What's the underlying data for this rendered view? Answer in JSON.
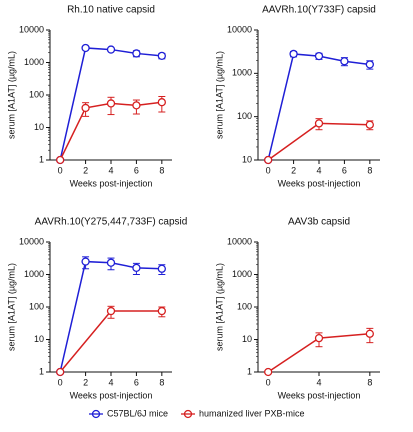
{
  "chart_data": [
    {
      "type": "line",
      "title": "Rh.10 native capsid",
      "x_label": "Weeks post-injection",
      "y_label": "serum [A1AT] (µg/mL)",
      "xlim": [
        -0.8,
        8.8
      ],
      "xticks": [
        0,
        2,
        4,
        6,
        8
      ],
      "ylim": [
        1,
        10000
      ],
      "yticks": [
        1,
        10,
        100,
        1000,
        10000
      ],
      "log_y": true,
      "series": [
        {
          "color": "#1f1fd6",
          "x": [
            0,
            2,
            4,
            6,
            8
          ],
          "values": [
            1,
            2800,
            2500,
            1900,
            1600
          ],
          "errors": [
            0,
            300,
            300,
            400,
            300
          ]
        },
        {
          "color": "#d62020",
          "x": [
            0,
            2,
            4,
            6,
            8
          ],
          "values": [
            1,
            40,
            55,
            48,
            60
          ],
          "errors": [
            0,
            18,
            30,
            22,
            30
          ]
        }
      ]
    },
    {
      "type": "line",
      "title": "AAVRh.10(Y733F) capsid",
      "x_label": "Weeks post-injection",
      "y_label": "serum [A1AT] (µg/mL)",
      "xlim": [
        -0.8,
        8.8
      ],
      "xticks": [
        0,
        2,
        4,
        6,
        8
      ],
      "ylim": [
        10,
        10000
      ],
      "yticks": [
        10,
        100,
        1000,
        10000
      ],
      "log_y": true,
      "series": [
        {
          "color": "#1f1fd6",
          "x": [
            0,
            2,
            4,
            6,
            8
          ],
          "values": [
            10,
            2800,
            2500,
            1900,
            1600
          ],
          "errors": [
            0,
            400,
            400,
            400,
            350
          ]
        },
        {
          "color": "#d62020",
          "x": [
            0,
            4,
            8
          ],
          "values": [
            10,
            70,
            65
          ],
          "errors": [
            0,
            20,
            15
          ]
        }
      ]
    },
    {
      "type": "line",
      "title": "AAVRh.10(Y275,447,733F) capsid",
      "x_label": "Weeks post-injection",
      "y_label": "serum [A1AT] (µg/mL)",
      "xlim": [
        -0.8,
        8.8
      ],
      "xticks": [
        0,
        2,
        4,
        6,
        8
      ],
      "ylim": [
        1,
        10000
      ],
      "yticks": [
        1,
        10,
        100,
        1000,
        10000
      ],
      "log_y": true,
      "series": [
        {
          "color": "#1f1fd6",
          "x": [
            0,
            2,
            4,
            6,
            8
          ],
          "values": [
            1,
            2500,
            2300,
            1600,
            1500
          ],
          "errors": [
            0,
            1000,
            900,
            600,
            500
          ]
        },
        {
          "color": "#d62020",
          "x": [
            0,
            4,
            8
          ],
          "values": [
            1,
            75,
            75
          ],
          "errors": [
            0,
            30,
            25
          ]
        }
      ]
    },
    {
      "type": "line",
      "title": "AAV3b capsid",
      "x_label": "Weeks post-injection",
      "y_label": "serum [A1AT] (µg/mL)",
      "xlim": [
        -0.8,
        8.8
      ],
      "xticks": [
        0,
        4,
        8
      ],
      "ylim": [
        1,
        10000
      ],
      "yticks": [
        1,
        10,
        100,
        1000,
        10000
      ],
      "log_y": true,
      "series": [
        {
          "color": "#d62020",
          "x": [
            0,
            4,
            8
          ],
          "values": [
            1,
            11,
            15
          ],
          "errors": [
            0,
            5,
            7
          ]
        }
      ]
    }
  ],
  "legend": [
    {
      "name": "C57BL/6J mice",
      "color": "#1f1fd6"
    },
    {
      "name": "humanized liver PXB-mice",
      "color": "#d62020"
    }
  ]
}
